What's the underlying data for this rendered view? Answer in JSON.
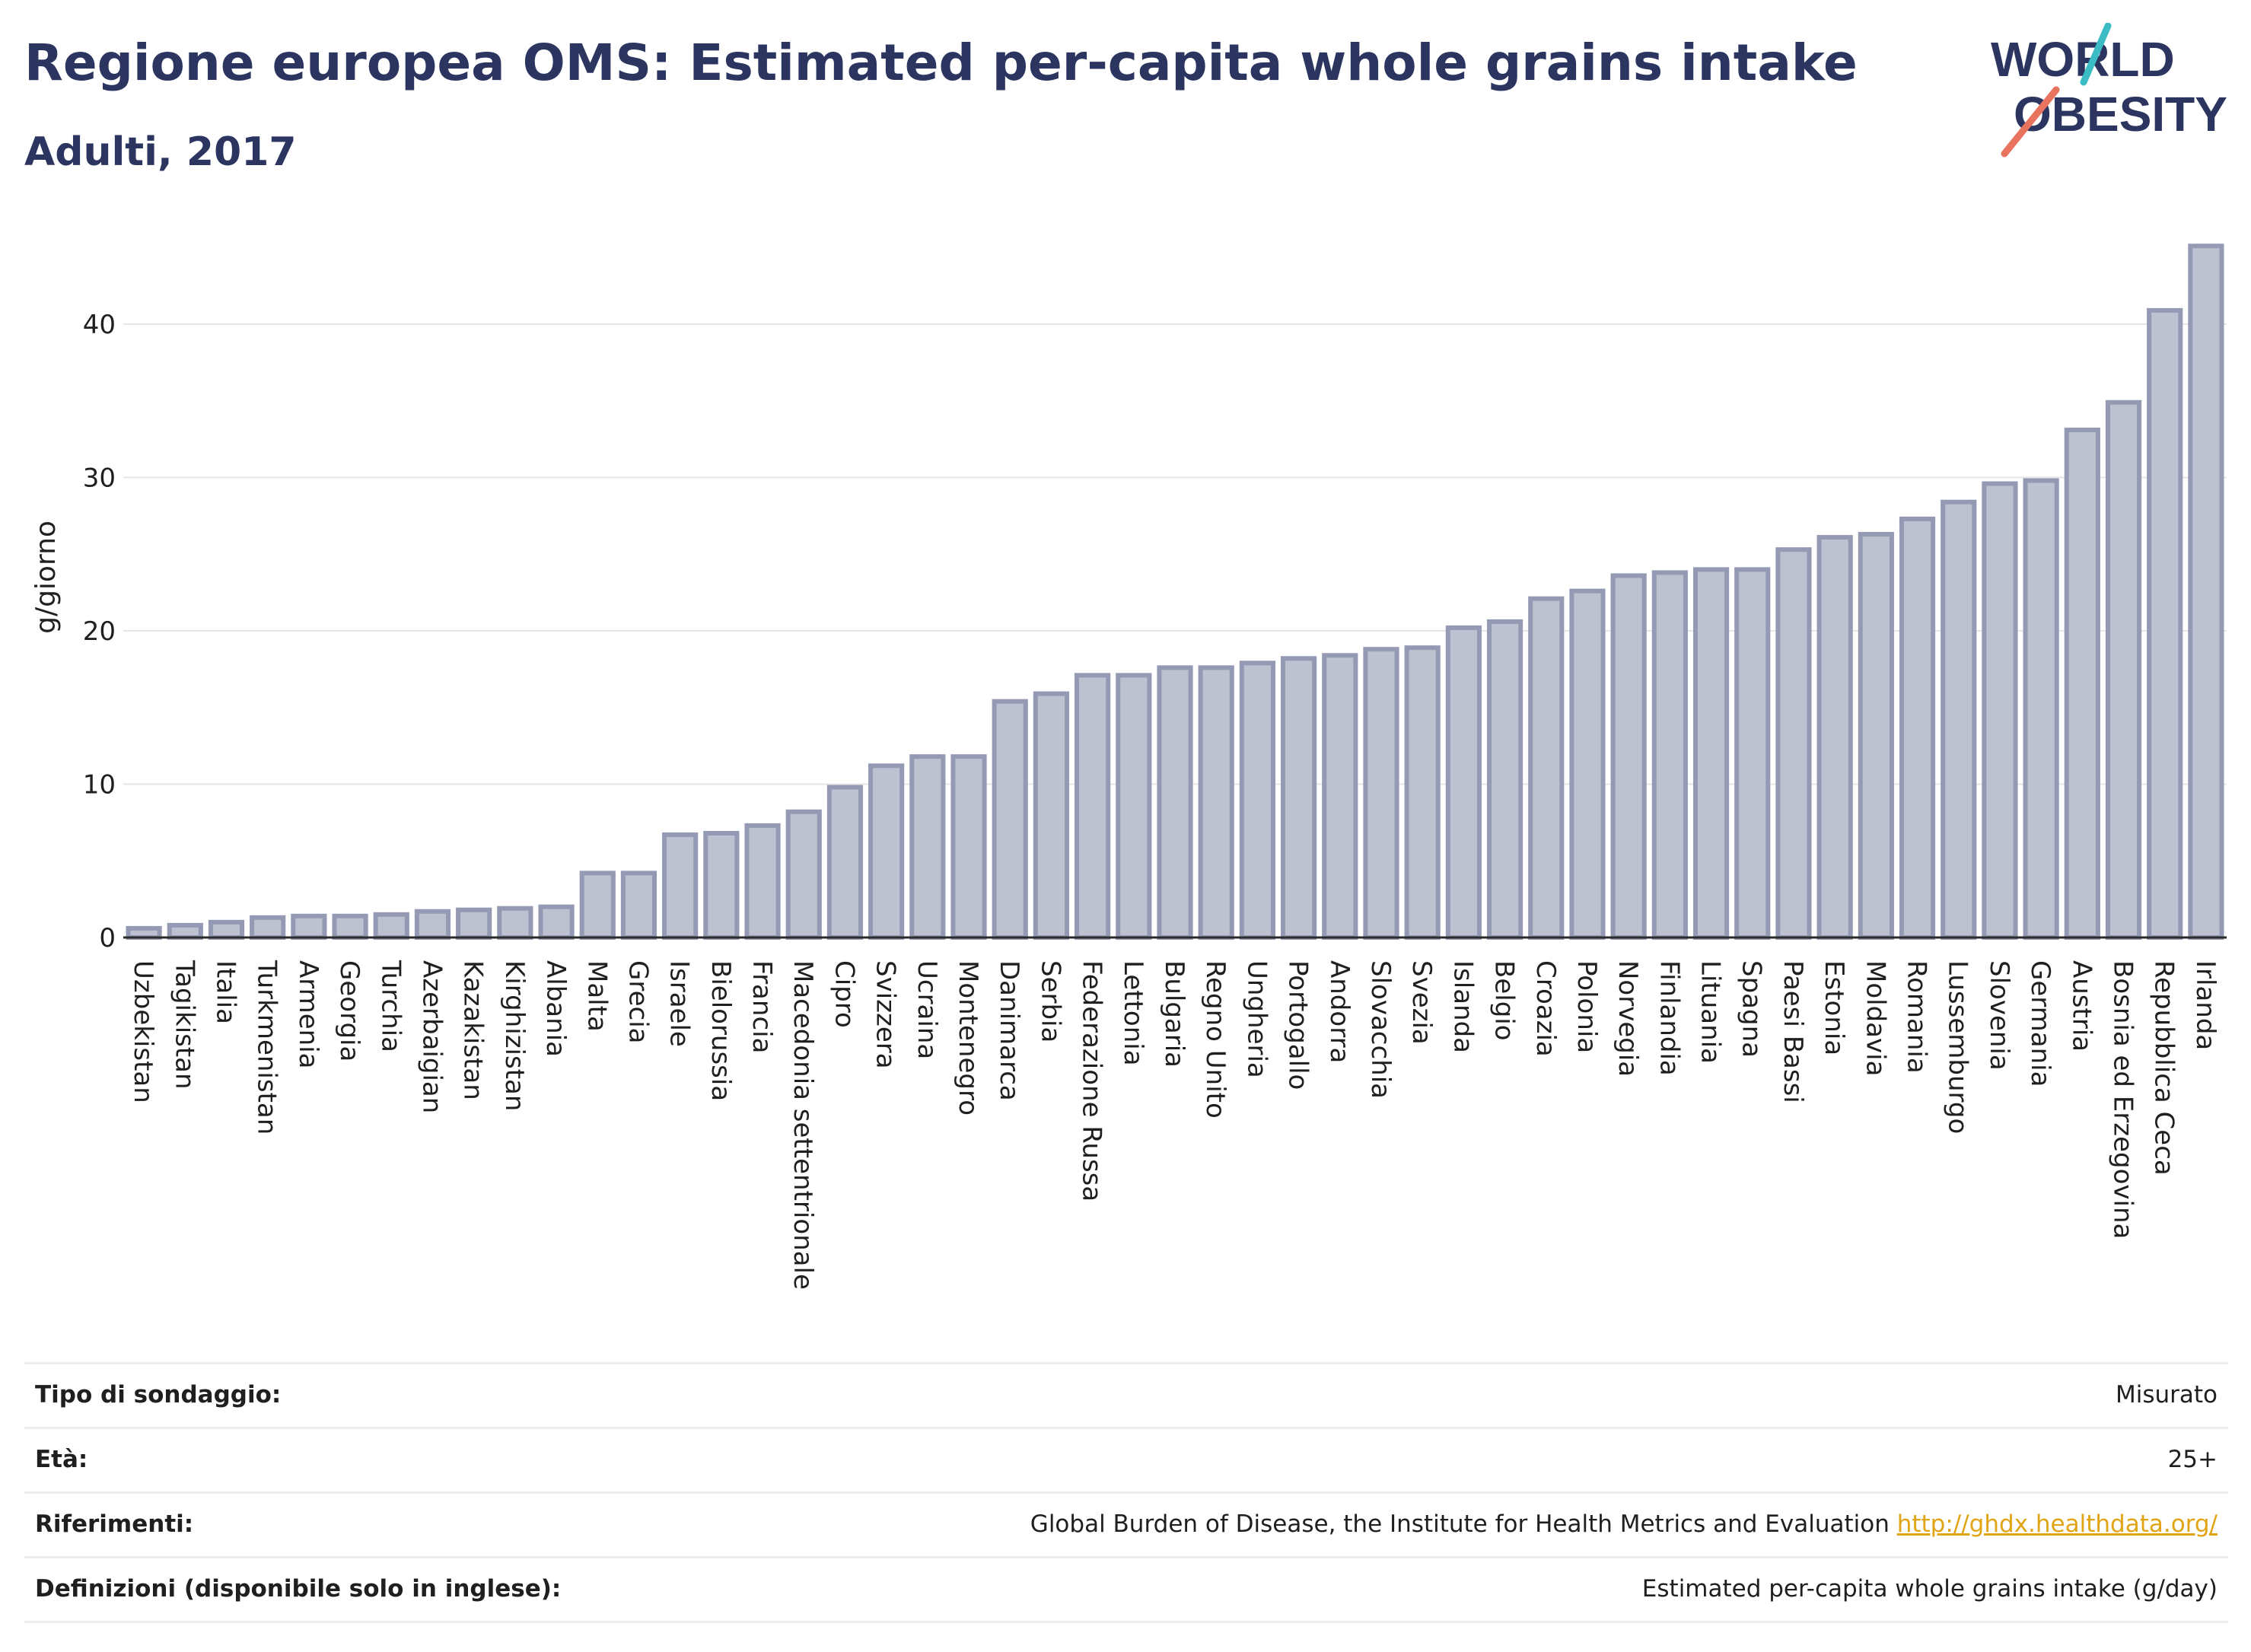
{
  "header": {
    "title": "Regione europea OMS: Estimated per-capita whole grains intake",
    "subtitle": "Adulti, 2017",
    "logo_line1": "WORLD",
    "logo_line2": "OBESITY"
  },
  "colors": {
    "title": "#2b3560",
    "bar_fill": "#bec1d0",
    "bar_stroke": "#9499b4",
    "grid": "#e6e6e6",
    "logo_text": "#2b3560",
    "logo_teal": "#3bbcc4",
    "logo_coral": "#e8735f",
    "link": "#e0a414"
  },
  "chart_data": {
    "type": "bar",
    "title": "Regione europea OMS: Estimated per-capita whole grains intake",
    "subtitle": "Adulti, 2017",
    "xlabel": "",
    "ylabel": "g/giorno",
    "ylim": [
      0,
      46
    ],
    "yticks": [
      0,
      10,
      20,
      30,
      40
    ],
    "grid": true,
    "categories": [
      "Uzbekistan",
      "Tagikistan",
      "Italia",
      "Turkmenistan",
      "Armenia",
      "Georgia",
      "Turchia",
      "Azerbaigian",
      "Kazakistan",
      "Kirghizistan",
      "Albania",
      "Malta",
      "Grecia",
      "Israele",
      "Bielorussia",
      "Francia",
      "Macedonia settentrionale",
      "Cipro",
      "Svizzera",
      "Ucraina",
      "Montenegro",
      "Danimarca",
      "Serbia",
      "Federazione Russa",
      "Lettonia",
      "Bulgaria",
      "Regno Unito",
      "Ungheria",
      "Portogallo",
      "Andorra",
      "Slovacchia",
      "Svezia",
      "Islanda",
      "Belgio",
      "Croazia",
      "Polonia",
      "Norvegia",
      "Finlandia",
      "Lituania",
      "Spagna",
      "Paesi Bassi",
      "Estonia",
      "Moldavia",
      "Romania",
      "Lussemburgo",
      "Slovenia",
      "Germania",
      "Austria",
      "Bosnia ed Erzegovina",
      "Repubblica Ceca",
      "Irlanda"
    ],
    "values": [
      0.6,
      0.8,
      1.0,
      1.3,
      1.4,
      1.4,
      1.5,
      1.7,
      1.8,
      1.9,
      2.0,
      4.2,
      4.2,
      6.7,
      6.8,
      7.3,
      8.2,
      9.8,
      11.2,
      11.8,
      11.8,
      15.4,
      15.9,
      17.1,
      17.1,
      17.6,
      17.6,
      17.9,
      18.2,
      18.4,
      18.8,
      18.9,
      20.2,
      20.6,
      22.1,
      22.6,
      23.6,
      23.8,
      24.0,
      24.0,
      25.3,
      26.1,
      26.3,
      27.3,
      28.4,
      29.6,
      29.8,
      33.1,
      34.9,
      40.9,
      45.1
    ]
  },
  "meta": [
    {
      "label": "Tipo di sondaggio:",
      "value": "Misurato"
    },
    {
      "label": "Età:",
      "value": "25+"
    },
    {
      "label": "Riferimenti:",
      "value": "Global Burden of Disease, the Institute for Health Metrics and Evaluation",
      "link": "http://ghdx.healthdata.org/"
    },
    {
      "label": "Definizioni (disponibile solo in inglese):",
      "value": "Estimated per-capita whole grains intake (g/day)"
    }
  ]
}
